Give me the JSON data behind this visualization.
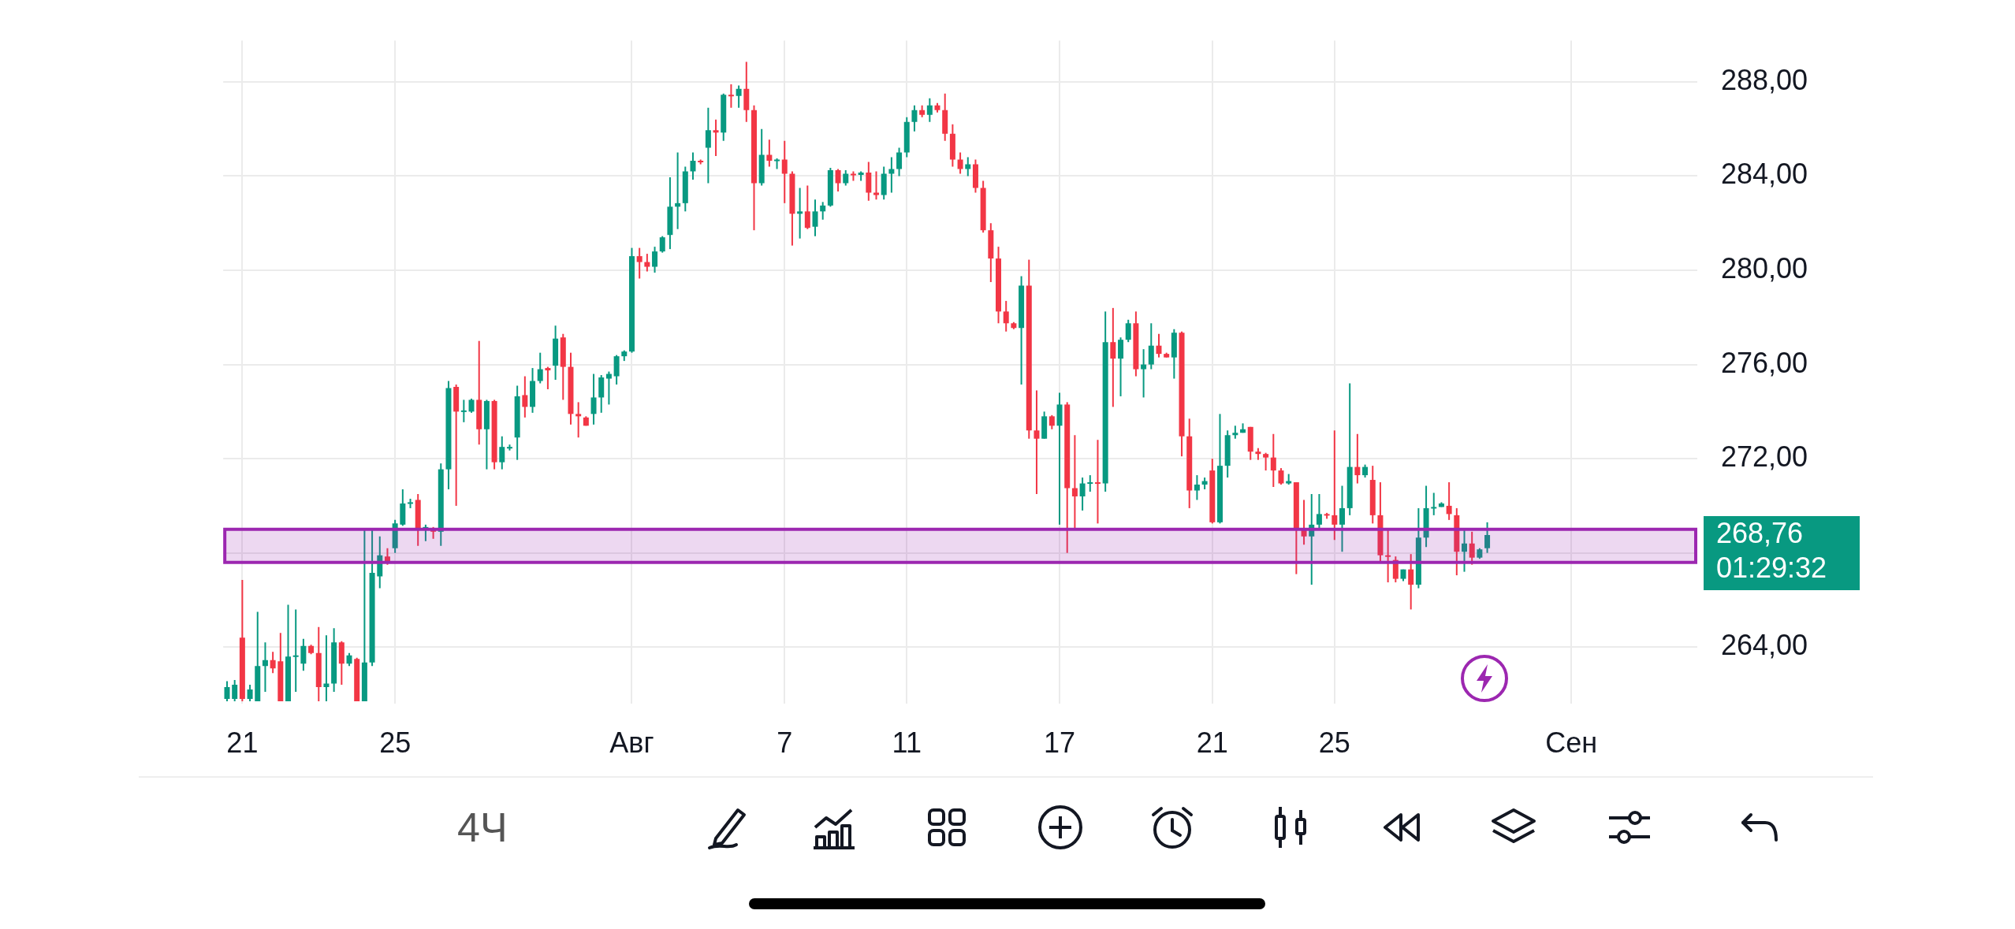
{
  "chart_data": {
    "type": "candlestick",
    "categories": [
      null,
      null,
      "21",
      null,
      null,
      null,
      null,
      null,
      null,
      null,
      null,
      null,
      null,
      null,
      null,
      null,
      null,
      null,
      null,
      null,
      null,
      null,
      "25",
      null,
      null,
      null,
      null,
      null,
      null,
      null,
      null,
      null,
      null,
      null,
      null,
      null,
      null,
      null,
      null,
      null,
      null,
      null,
      null,
      null,
      null,
      null,
      null,
      null,
      null,
      null,
      null,
      null,
      null,
      "Авг",
      null,
      null,
      null,
      null,
      null,
      null,
      null,
      null,
      null,
      null,
      null,
      null,
      null,
      null,
      null,
      null,
      null,
      null,
      null,
      "7",
      null,
      null,
      null,
      null,
      null,
      null,
      null,
      null,
      null,
      null,
      null,
      null,
      null,
      null,
      null,
      "11",
      null,
      null,
      null,
      null,
      null,
      null,
      null,
      null,
      null,
      null,
      null,
      null,
      null,
      null,
      null,
      null,
      null,
      null,
      null,
      "17",
      null,
      null,
      null,
      null,
      null,
      null,
      null,
      null,
      null,
      null,
      null,
      null,
      null,
      null,
      null,
      null,
      null,
      null,
      null,
      "21",
      null,
      null,
      null,
      null,
      null,
      null,
      null,
      null,
      null,
      null,
      null,
      null,
      null,
      null,
      null,
      "25",
      null,
      null,
      null,
      null,
      null,
      null,
      null,
      null,
      null,
      null,
      null,
      null,
      null,
      null,
      null,
      null,
      null,
      null,
      null,
      null,
      null,
      null,
      null,
      null,
      null,
      null,
      null,
      null,
      null,
      null,
      "Сен",
      null,
      null,
      null,
      null,
      null,
      null,
      null,
      null,
      null,
      null,
      null,
      null,
      null,
      null,
      null,
      null
    ],
    "ohlc": [
      [
        261.8,
        262.55,
        261.7,
        262.3
      ],
      [
        261.8,
        262.6,
        261.7,
        262.4
      ],
      [
        264.4,
        266.85,
        261.7,
        261.8
      ],
      [
        261.8,
        262.4,
        261.7,
        262.2
      ],
      [
        261.7,
        265.5,
        261.7,
        263.2
      ],
      [
        263.2,
        264.2,
        262.1,
        263.45
      ],
      [
        263.45,
        263.8,
        262.9,
        263.1
      ],
      [
        263.4,
        264.6,
        261.7,
        261.7
      ],
      [
        261.7,
        265.8,
        261.7,
        263.6
      ],
      [
        263.6,
        265.6,
        262.1,
        263.65
      ],
      [
        263.3,
        264.35,
        263.0,
        264.05
      ],
      [
        264.05,
        264.1,
        263.7,
        263.75
      ],
      [
        263.75,
        264.85,
        261.7,
        262.3
      ],
      [
        262.3,
        264.5,
        261.7,
        262.45
      ],
      [
        262.45,
        264.8,
        262.1,
        264.2
      ],
      [
        264.2,
        264.25,
        262.4,
        263.3
      ],
      [
        263.3,
        263.75,
        263.2,
        263.65
      ],
      [
        263.5,
        263.55,
        261.7,
        261.7
      ],
      [
        261.7,
        269.0,
        261.7,
        263.35
      ],
      [
        263.35,
        269.0,
        263.2,
        267.15
      ],
      [
        267.0,
        268.7,
        266.5,
        267.9
      ],
      [
        267.85,
        268.2,
        267.5,
        267.6
      ],
      [
        268.2,
        269.4,
        268.0,
        269.25
      ],
      [
        269.2,
        270.7,
        269.15,
        270.1
      ],
      [
        270.1,
        270.3,
        269.9,
        270.15
      ],
      [
        270.25,
        270.5,
        268.3,
        269.05
      ],
      [
        269.05,
        269.2,
        268.5,
        269.1
      ],
      [
        269.05,
        269.1,
        268.6,
        268.9
      ],
      [
        268.9,
        271.8,
        268.3,
        271.55
      ],
      [
        271.55,
        275.3,
        270.7,
        275.0
      ],
      [
        275.05,
        275.15,
        270.0,
        274.0
      ],
      [
        274.0,
        274.5,
        273.55,
        274.05
      ],
      [
        274.0,
        274.55,
        273.95,
        274.5
      ],
      [
        274.5,
        277.0,
        272.6,
        273.25
      ],
      [
        273.25,
        274.5,
        271.55,
        274.45
      ],
      [
        274.45,
        274.5,
        271.55,
        271.85
      ],
      [
        271.85,
        272.95,
        271.55,
        272.5
      ],
      [
        272.45,
        272.6,
        272.35,
        272.5
      ],
      [
        272.9,
        275.1,
        271.95,
        274.65
      ],
      [
        274.7,
        275.5,
        273.75,
        274.2
      ],
      [
        274.2,
        275.85,
        273.95,
        275.3
      ],
      [
        275.3,
        276.5,
        275.2,
        275.8
      ],
      [
        275.85,
        275.9,
        274.95,
        275.75
      ],
      [
        275.95,
        277.65,
        275.35,
        277.1
      ],
      [
        277.15,
        277.3,
        274.5,
        275.9
      ],
      [
        275.9,
        276.5,
        273.45,
        273.9
      ],
      [
        273.9,
        274.4,
        272.9,
        273.8
      ],
      [
        273.75,
        273.8,
        273.4,
        273.4
      ],
      [
        273.9,
        275.6,
        273.45,
        274.6
      ],
      [
        274.6,
        275.55,
        273.95,
        275.45
      ],
      [
        275.4,
        275.7,
        274.3,
        275.6
      ],
      [
        275.5,
        276.4,
        275.15,
        276.35
      ],
      [
        276.35,
        276.6,
        276.15,
        276.55
      ],
      [
        276.55,
        280.95,
        276.5,
        280.6
      ],
      [
        280.6,
        280.95,
        279.65,
        280.35
      ],
      [
        280.35,
        280.7,
        279.95,
        280.15
      ],
      [
        280.15,
        281.0,
        279.9,
        280.8
      ],
      [
        280.8,
        281.45,
        280.75,
        281.4
      ],
      [
        281.5,
        283.95,
        280.9,
        282.7
      ],
      [
        282.7,
        285.0,
        281.75,
        282.85
      ],
      [
        282.85,
        284.4,
        282.5,
        284.2
      ],
      [
        284.2,
        285.0,
        283.85,
        284.65
      ],
      [
        284.65,
        284.7,
        284.5,
        284.6
      ],
      [
        285.2,
        286.9,
        283.7,
        285.95
      ],
      [
        285.95,
        286.4,
        284.85,
        285.85
      ],
      [
        285.85,
        287.5,
        285.5,
        287.45
      ],
      [
        287.45,
        287.9,
        286.9,
        287.4
      ],
      [
        287.4,
        287.85,
        286.9,
        287.7
      ],
      [
        287.7,
        288.85,
        286.3,
        286.8
      ],
      [
        286.8,
        287.0,
        281.7,
        283.7
      ],
      [
        283.7,
        286.0,
        283.6,
        284.9
      ],
      [
        284.9,
        285.55,
        284.4,
        284.65
      ],
      [
        284.65,
        284.75,
        284.3,
        284.7
      ],
      [
        284.7,
        285.5,
        282.85,
        284.1
      ],
      [
        284.1,
        284.2,
        281.05,
        282.4
      ],
      [
        282.4,
        283.5,
        281.35,
        282.5
      ],
      [
        282.5,
        283.6,
        281.75,
        281.8
      ],
      [
        281.85,
        283.0,
        281.45,
        282.5
      ],
      [
        282.5,
        282.9,
        282.15,
        282.75
      ],
      [
        282.75,
        284.35,
        282.7,
        284.25
      ],
      [
        284.25,
        284.3,
        283.35,
        283.7
      ],
      [
        283.7,
        284.25,
        283.6,
        284.1
      ],
      [
        284.1,
        284.2,
        283.8,
        284.05
      ],
      [
        284.05,
        284.2,
        283.8,
        284.15
      ],
      [
        284.15,
        284.6,
        282.95,
        283.3
      ],
      [
        283.3,
        284.2,
        283.0,
        283.2
      ],
      [
        283.2,
        284.4,
        283.0,
        284.1
      ],
      [
        284.1,
        284.8,
        283.3,
        284.3
      ],
      [
        284.3,
        285.2,
        284.0,
        285.0
      ],
      [
        285.0,
        286.5,
        284.8,
        286.3
      ],
      [
        286.3,
        287.0,
        285.9,
        286.8
      ],
      [
        286.8,
        287.0,
        286.5,
        286.6
      ],
      [
        286.6,
        287.3,
        286.3,
        287.0
      ],
      [
        287.0,
        287.1,
        286.7,
        286.8
      ],
      [
        286.8,
        287.5,
        285.5,
        285.8
      ],
      [
        285.8,
        286.2,
        284.4,
        284.7
      ],
      [
        284.7,
        285.0,
        284.1,
        284.3
      ],
      [
        284.3,
        284.8,
        284.0,
        284.5
      ],
      [
        284.5,
        284.7,
        283.3,
        283.5
      ],
      [
        283.5,
        283.8,
        281.6,
        281.7
      ],
      [
        281.7,
        282.0,
        279.5,
        280.5
      ],
      [
        280.5,
        281.0,
        277.75,
        278.25
      ],
      [
        278.25,
        278.7,
        277.4,
        277.75
      ],
      [
        277.75,
        277.8,
        277.5,
        277.55
      ],
      [
        277.55,
        279.75,
        275.15,
        279.35
      ],
      [
        279.35,
        280.45,
        272.85,
        273.2
      ],
      [
        273.2,
        274.9,
        270.5,
        272.85
      ],
      [
        272.85,
        274.0,
        272.85,
        273.8
      ],
      [
        273.8,
        273.85,
        273.25,
        273.4
      ],
      [
        273.4,
        274.8,
        269.2,
        274.3
      ],
      [
        274.3,
        274.4,
        268.0,
        270.75
      ],
      [
        270.75,
        273.0,
        269.0,
        270.4
      ],
      [
        270.4,
        271.2,
        269.8,
        270.95
      ],
      [
        270.95,
        271.3,
        270.6,
        271.0
      ],
      [
        271.0,
        272.8,
        269.25,
        270.95
      ],
      [
        270.95,
        278.25,
        270.6,
        276.95
      ],
      [
        276.95,
        278.4,
        274.2,
        276.25
      ],
      [
        276.25,
        277.15,
        274.65,
        277.05
      ],
      [
        277.05,
        277.9,
        276.95,
        277.75
      ],
      [
        277.75,
        278.25,
        275.5,
        275.8
      ],
      [
        275.8,
        276.65,
        274.6,
        276.0
      ],
      [
        276.0,
        277.75,
        275.8,
        276.8
      ],
      [
        276.8,
        277.3,
        276.3,
        276.45
      ],
      [
        276.45,
        276.5,
        276.3,
        276.3
      ],
      [
        276.3,
        277.5,
        275.4,
        277.35
      ],
      [
        277.35,
        277.4,
        272.1,
        272.95
      ],
      [
        272.95,
        273.7,
        269.9,
        270.65
      ],
      [
        270.65,
        271.3,
        270.25,
        270.9
      ],
      [
        270.9,
        271.2,
        270.7,
        271.05
      ],
      [
        271.5,
        272.0,
        269.25,
        269.3
      ],
      [
        269.3,
        273.9,
        269.25,
        271.7
      ],
      [
        271.7,
        273.2,
        271.2,
        273.0
      ],
      [
        273.0,
        273.4,
        272.85,
        273.1
      ],
      [
        273.1,
        273.5,
        273.1,
        273.25
      ],
      [
        273.35,
        273.35,
        271.95,
        272.3
      ],
      [
        272.3,
        272.45,
        271.95,
        272.2
      ],
      [
        272.2,
        272.25,
        271.5,
        272.05
      ],
      [
        272.05,
        273.05,
        270.8,
        271.5
      ],
      [
        271.5,
        271.6,
        270.9,
        270.95
      ],
      [
        270.95,
        271.35,
        270.9,
        271.05
      ],
      [
        271.0,
        271.0,
        267.1,
        269.0
      ],
      [
        269.0,
        270.25,
        268.35,
        268.7
      ],
      [
        268.7,
        270.5,
        266.65,
        269.2
      ],
      [
        269.2,
        270.5,
        269.05,
        269.65
      ],
      [
        269.65,
        269.7,
        269.45,
        269.6
      ],
      [
        269.6,
        273.2,
        268.55,
        269.2
      ],
      [
        269.2,
        270.85,
        268.05,
        269.9
      ],
      [
        269.9,
        275.2,
        269.6,
        271.65
      ],
      [
        271.65,
        273.05,
        270.95,
        271.3
      ],
      [
        271.3,
        271.75,
        271.2,
        271.65
      ],
      [
        271.1,
        271.7,
        269.25,
        269.6
      ],
      [
        269.6,
        271.0,
        267.65,
        267.9
      ],
      [
        267.9,
        269.0,
        266.75,
        267.85
      ],
      [
        267.7,
        267.85,
        266.75,
        266.9
      ],
      [
        266.9,
        267.3,
        266.8,
        267.3
      ],
      [
        267.3,
        267.95,
        265.6,
        266.65
      ],
      [
        266.65,
        269.9,
        266.5,
        268.65
      ],
      [
        268.65,
        270.85,
        268.25,
        269.9
      ],
      [
        269.9,
        270.55,
        269.6,
        269.95
      ],
      [
        269.95,
        270.15,
        269.95,
        270.1
      ],
      [
        270.0,
        271.0,
        269.4,
        269.65
      ],
      [
        269.6,
        269.9,
        267.05,
        268.05
      ],
      [
        268.05,
        269.0,
        267.2,
        268.4
      ],
      [
        268.4,
        268.9,
        267.5,
        267.8
      ],
      [
        267.8,
        268.2,
        267.75,
        268.15
      ],
      [
        268.2,
        269.3,
        268.0,
        268.76
      ],
      null,
      null,
      null,
      null,
      null,
      null,
      null,
      null,
      null,
      null,
      null,
      null,
      null,
      null,
      null,
      null,
      null,
      null,
      null,
      null,
      null,
      null,
      null,
      null,
      null,
      null,
      null
    ],
    "colors": [
      "#089981",
      "#089981",
      "#f23645",
      "#089981",
      "#089981",
      "#089981",
      "#f23645",
      "#f23645",
      "#089981",
      "#089981",
      "#089981",
      "#f23645",
      "#f23645",
      "#089981",
      "#089981",
      "#f23645",
      "#089981",
      "#f23645",
      "#089981",
      "#089981",
      "#089981",
      "#f23645",
      "#089981",
      "#089981",
      "#089981",
      "#f23645",
      "#089981",
      "#f23645",
      "#089981",
      "#089981",
      "#f23645",
      "#089981",
      "#089981",
      "#f23645",
      "#089981",
      "#f23645",
      "#089981",
      "#089981",
      "#089981",
      "#f23645",
      "#089981",
      "#089981",
      "#f23645",
      "#089981",
      "#f23645",
      "#f23645",
      "#f23645",
      "#f23645",
      "#089981",
      "#089981",
      "#089981",
      "#089981",
      "#089981",
      "#089981",
      "#f23645",
      "#f23645",
      "#089981",
      "#089981",
      "#089981",
      "#089981",
      "#089981",
      "#089981",
      "#f23645",
      "#089981",
      "#f23645",
      "#089981",
      "#f23645",
      "#089981",
      "#f23645",
      "#f23645",
      "#089981",
      "#f23645",
      "#089981",
      "#f23645",
      "#f23645",
      "#089981",
      "#f23645",
      "#089981",
      "#089981",
      "#089981",
      "#f23645",
      "#089981",
      "#f23645",
      "#089981",
      "#f23645",
      "#f23645",
      "#089981",
      "#089981",
      "#089981",
      "#089981",
      "#089981",
      "#f23645",
      "#089981",
      "#f23645",
      "#f23645",
      "#f23645",
      "#f23645",
      "#089981",
      "#f23645",
      "#f23645",
      "#f23645",
      "#f23645",
      "#f23645",
      "#f23645",
      "#089981",
      "#f23645",
      "#f23645",
      "#089981",
      "#f23645",
      "#089981",
      "#f23645",
      "#f23645",
      "#089981",
      "#089981",
      "#f23645",
      "#089981",
      "#f23645",
      "#089981",
      "#089981",
      "#f23645",
      "#089981",
      "#089981",
      "#f23645",
      "#f23645",
      "#089981",
      "#f23645",
      "#f23645",
      "#089981",
      "#089981",
      "#f23645",
      "#089981",
      "#089981",
      "#089981",
      "#089981",
      "#f23645",
      "#f23645",
      "#f23645",
      "#f23645",
      "#f23645",
      "#089981",
      "#f23645",
      "#f23645",
      "#089981",
      "#089981",
      "#f23645",
      "#f23645",
      "#089981",
      "#089981",
      "#f23645",
      "#089981",
      "#f23645",
      "#f23645",
      "#f23645",
      "#f23645",
      "#089981",
      "#f23645",
      "#089981",
      "#089981",
      "#089981",
      "#089981",
      "#f23645",
      "#f23645",
      "#089981",
      "#f23645",
      "#089981",
      "#089981",
      null,
      null,
      null,
      null,
      null,
      null,
      null,
      null,
      null,
      null,
      null,
      null,
      null,
      null,
      null,
      null,
      null,
      null,
      null,
      null,
      null,
      null,
      null,
      null,
      null,
      null,
      null
    ],
    "ylim": [
      261.6,
      289.75
    ],
    "yticks": [
      {
        "value": 264,
        "label": "264,00"
      },
      {
        "value": 268,
        "label": null
      },
      {
        "value": 272,
        "label": "272,00"
      },
      {
        "value": 276,
        "label": "276,00"
      },
      {
        "value": 280,
        "label": "280,00"
      },
      {
        "value": 284,
        "label": "284,00"
      },
      {
        "value": 288,
        "label": "288,00"
      }
    ],
    "grid": true,
    "bands": [
      {
        "axis": "y",
        "from": 267.6,
        "to": 269.0,
        "color": "#9c27b0"
      }
    ],
    "annotations": [
      "268,76",
      "01:29:32",
      "4Ч"
    ]
  }
}
